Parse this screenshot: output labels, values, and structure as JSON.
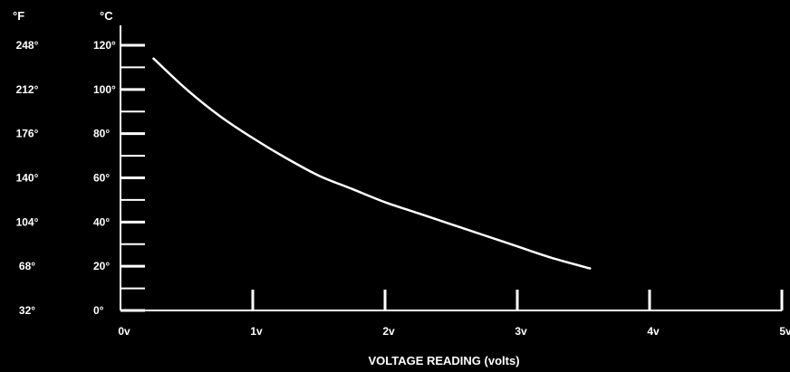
{
  "chart_data": {
    "type": "line",
    "title": "",
    "xlabel": "VOLTAGE READING (volts)",
    "ylabel_c_unit": "°C",
    "ylabel_f_unit": "°F",
    "xlim": [
      0,
      5
    ],
    "ylim": [
      0,
      120
    ],
    "x_ticks": [
      {
        "value": 0,
        "label": "0v"
      },
      {
        "value": 1,
        "label": "1v"
      },
      {
        "value": 2,
        "label": "2v"
      },
      {
        "value": 3,
        "label": "3v"
      },
      {
        "value": 4,
        "label": "4v"
      },
      {
        "value": 5,
        "label": "5v"
      }
    ],
    "y_ticks_c": [
      {
        "value": 0,
        "label": "0°"
      },
      {
        "value": 20,
        "label": "20°"
      },
      {
        "value": 40,
        "label": "40°"
      },
      {
        "value": 60,
        "label": "60°"
      },
      {
        "value": 80,
        "label": "80°"
      },
      {
        "value": 100,
        "label": "100°"
      },
      {
        "value": 120,
        "label": "120°"
      }
    ],
    "y_ticks_f": [
      {
        "value": 0,
        "label": "32°"
      },
      {
        "value": 20,
        "label": "68°"
      },
      {
        "value": 40,
        "label": "104°"
      },
      {
        "value": 60,
        "label": "140°"
      },
      {
        "value": 80,
        "label": "176°"
      },
      {
        "value": 100,
        "label": "212°"
      },
      {
        "value": 120,
        "label": "248°"
      }
    ],
    "y_minor_ticks": [
      10,
      30,
      50,
      70,
      90,
      110
    ],
    "grid": false,
    "series": [
      {
        "x": [
          0.25,
          0.5,
          0.75,
          1.0,
          1.25,
          1.5,
          1.75,
          2.0,
          2.25,
          2.5,
          2.75,
          3.0,
          3.25,
          3.55
        ],
        "y": [
          114,
          100,
          88,
          78,
          69,
          61,
          55,
          49,
          44,
          39,
          34,
          29,
          24,
          19
        ]
      }
    ]
  },
  "colors": {
    "background": "#000000",
    "foreground": "#ffffff"
  }
}
